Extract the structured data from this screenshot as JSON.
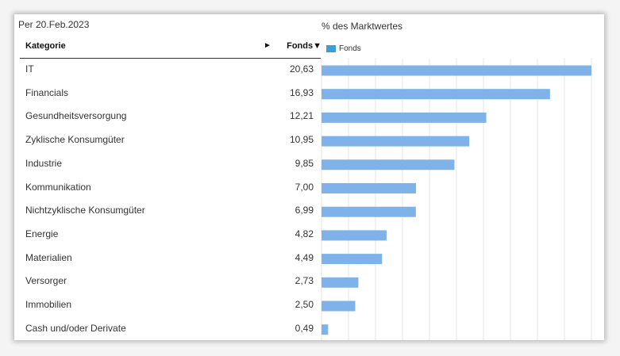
{
  "header": {
    "as_of": "Per 20.Feb.2023",
    "chart_title": "% des Marktwertes",
    "legend_label": "Fonds",
    "col_category": "Kategorie",
    "col_sort_arrow": "►",
    "col_fonds": "Fonds▼"
  },
  "colors": {
    "bar": "#7fb2e8",
    "legend": "#3a9fd8",
    "grid": "#e6e6e6"
  },
  "chart_data": {
    "type": "bar",
    "orientation": "horizontal",
    "title": "% des Marktwertes",
    "categories": [
      "IT",
      "Financials",
      "Gesundheitsversorgung",
      "Zyklische Konsumgüter",
      "Industrie",
      "Kommunikation",
      "Nichtzyklische Konsumgüter",
      "Energie",
      "Materialien",
      "Versorger",
      "Immobilien",
      "Cash und/oder Derivate"
    ],
    "value_labels": [
      "20,63",
      "16,93",
      "12,21",
      "10,95",
      "9,85",
      "7,00",
      "6,99",
      "4,82",
      "4,49",
      "2,73",
      "2,50",
      "0,49"
    ],
    "series": [
      {
        "name": "Fonds",
        "values": [
          20.63,
          16.93,
          12.21,
          10.95,
          9.85,
          7.0,
          6.99,
          4.82,
          4.49,
          2.73,
          2.5,
          0.49
        ]
      }
    ],
    "xlim": [
      0,
      20
    ],
    "grid": true,
    "legend_position": "top-left"
  }
}
